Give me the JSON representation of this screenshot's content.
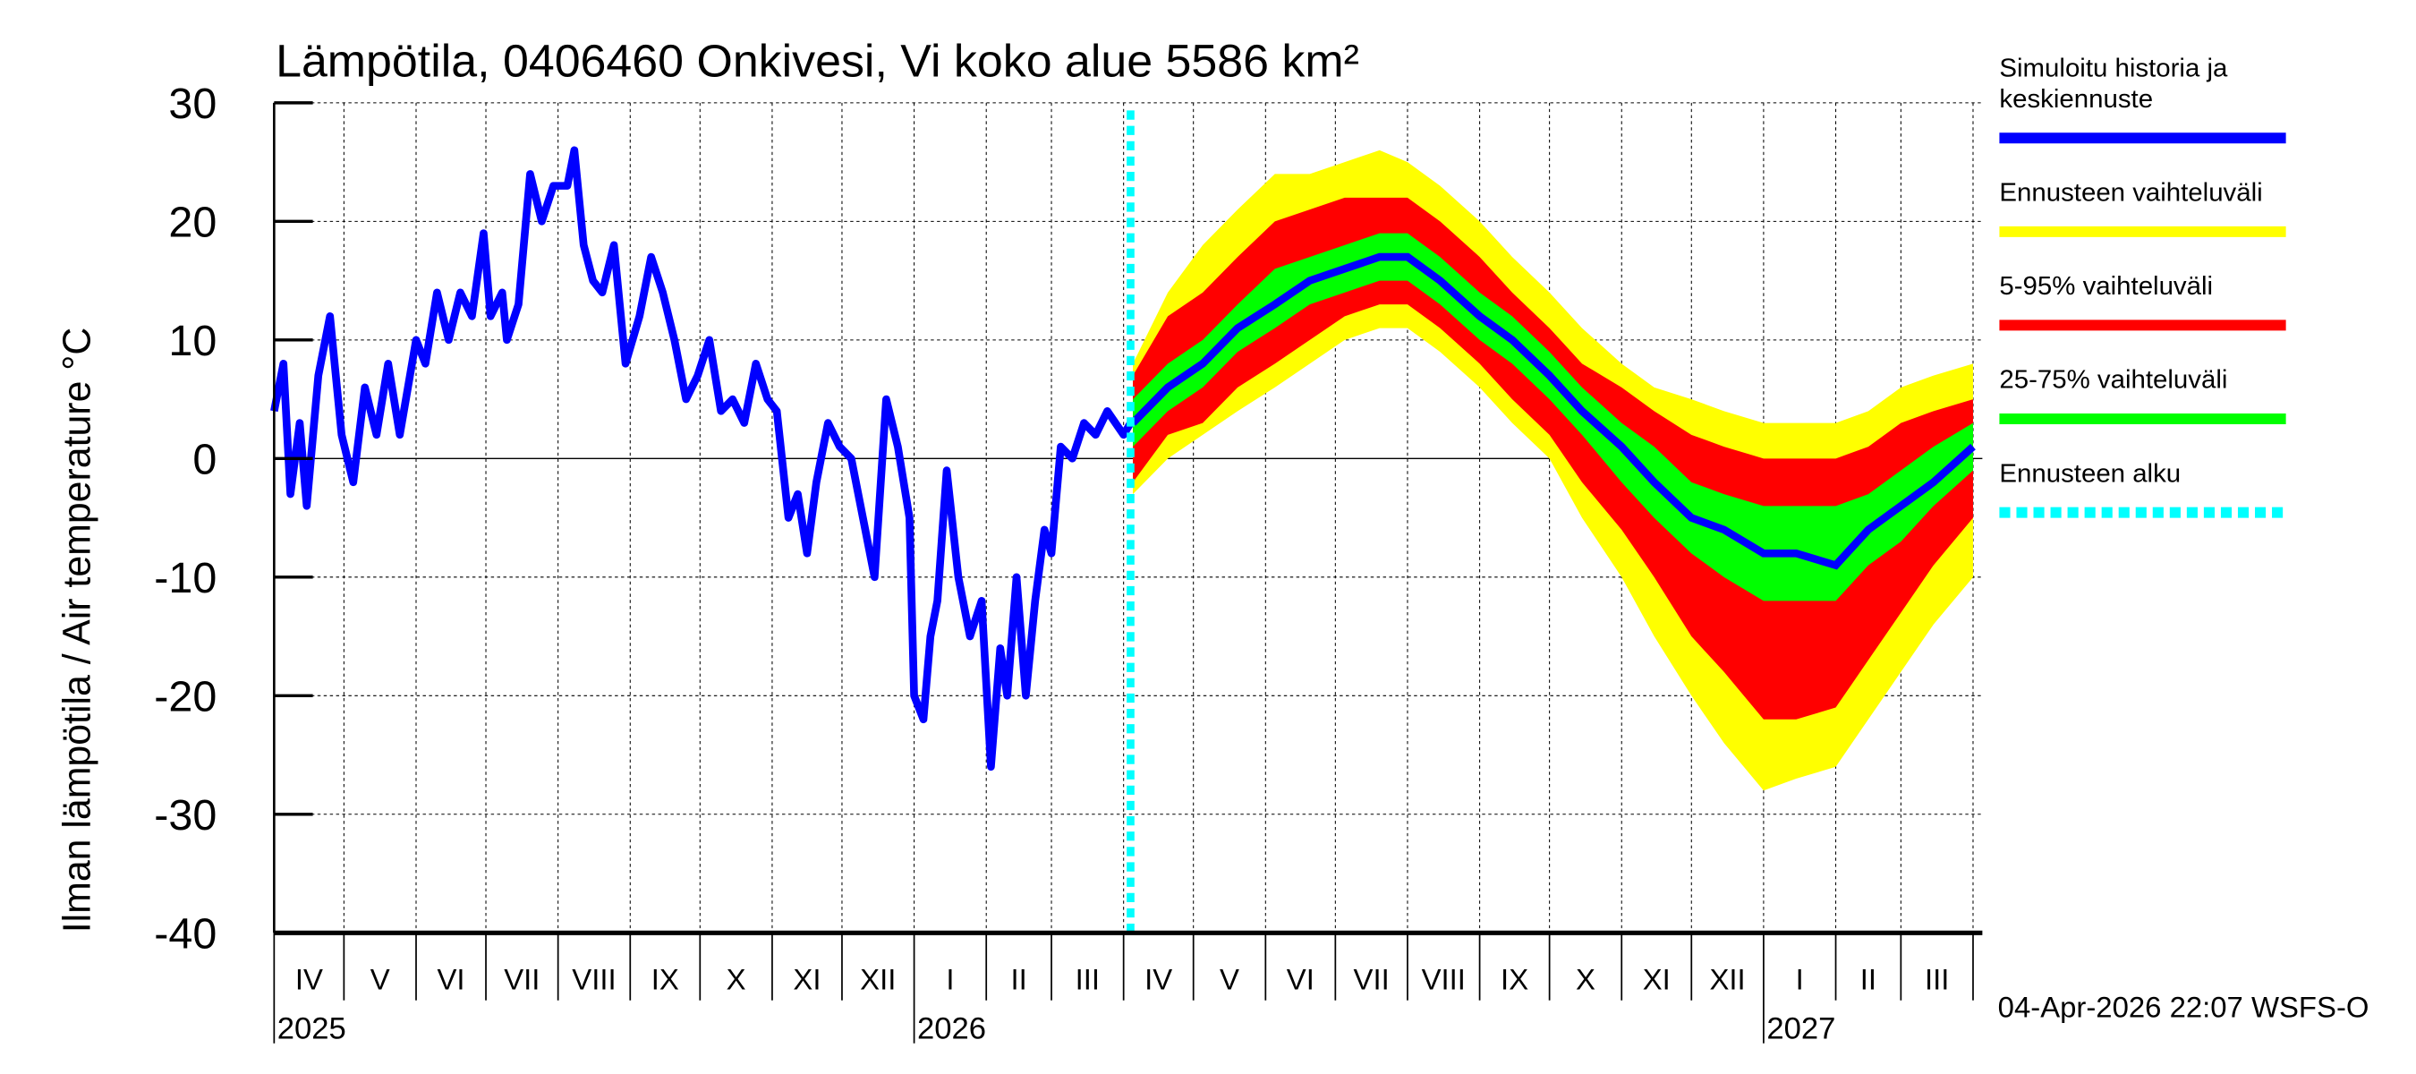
{
  "chart_data": {
    "type": "area",
    "title": "Lämpötila, 0406460 Onkivesi, Vi koko alue 5586 km²",
    "ylabel": "Ilman lämpötila / Air temperature   °C",
    "ylim": [
      -40,
      30
    ],
    "yticks": [
      "30",
      "20",
      "10",
      "0",
      "-10",
      "-20",
      "-30",
      "-40"
    ],
    "grid": true,
    "xrange": [
      "2025-04-01",
      "2027-04-05"
    ],
    "months": [
      "IV",
      "V",
      "VI",
      "VII",
      "VIII",
      "IX",
      "X",
      "XI",
      "XII",
      "I",
      "II",
      "III",
      "IV",
      "V",
      "VI",
      "VII",
      "VIII",
      "IX",
      "X",
      "XI",
      "XII",
      "I",
      "II",
      "III"
    ],
    "years": [
      {
        "label": "2025",
        "date": "2025-04-01"
      },
      {
        "label": "2026",
        "date": "2026-01-01"
      },
      {
        "label": "2027",
        "date": "2027-01-01"
      }
    ],
    "forecast_start": "2026-04-04",
    "footer": "04-Apr-2026 22:07 WSFS-O",
    "legend": {
      "placement": "right",
      "items": [
        {
          "label1": "Simuloitu historia ja",
          "label2": "keskiennuste",
          "color": "#0000ff",
          "style": "solid"
        },
        {
          "label1": "Ennusteen vaihteluväli",
          "color": "#ffff00",
          "style": "solid"
        },
        {
          "label1": "5-95% vaihteluväli",
          "color": "#ff0000",
          "style": "solid"
        },
        {
          "label1": "25-75% vaihteluväli",
          "color": "#00ff00",
          "style": "solid"
        },
        {
          "label1": "Ennusteen alku",
          "color": "#00ffff",
          "style": "dashed"
        }
      ]
    },
    "history": [
      [
        "2025-04-01",
        4
      ],
      [
        "2025-04-05",
        8
      ],
      [
        "2025-04-08",
        -3
      ],
      [
        "2025-04-12",
        3
      ],
      [
        "2025-04-15",
        -4
      ],
      [
        "2025-04-20",
        7
      ],
      [
        "2025-04-25",
        12
      ],
      [
        "2025-04-30",
        2
      ],
      [
        "2025-05-05",
        -2
      ],
      [
        "2025-05-10",
        6
      ],
      [
        "2025-05-15",
        2
      ],
      [
        "2025-05-20",
        8
      ],
      [
        "2025-05-25",
        2
      ],
      [
        "2025-06-01",
        10
      ],
      [
        "2025-06-05",
        8
      ],
      [
        "2025-06-10",
        14
      ],
      [
        "2025-06-15",
        10
      ],
      [
        "2025-06-20",
        14
      ],
      [
        "2025-06-25",
        12
      ],
      [
        "2025-06-30",
        19
      ],
      [
        "2025-07-03",
        12
      ],
      [
        "2025-07-08",
        14
      ],
      [
        "2025-07-10",
        10
      ],
      [
        "2025-07-15",
        13
      ],
      [
        "2025-07-20",
        24
      ],
      [
        "2025-07-25",
        20
      ],
      [
        "2025-07-30",
        23
      ],
      [
        "2025-08-05",
        23
      ],
      [
        "2025-08-08",
        26
      ],
      [
        "2025-08-12",
        18
      ],
      [
        "2025-08-16",
        15
      ],
      [
        "2025-08-20",
        14
      ],
      [
        "2025-08-25",
        18
      ],
      [
        "2025-08-30",
        8
      ],
      [
        "2025-09-05",
        12
      ],
      [
        "2025-09-10",
        17
      ],
      [
        "2025-09-15",
        14
      ],
      [
        "2025-09-20",
        10
      ],
      [
        "2025-09-25",
        5
      ],
      [
        "2025-09-30",
        7
      ],
      [
        "2025-10-05",
        10
      ],
      [
        "2025-10-10",
        4
      ],
      [
        "2025-10-15",
        5
      ],
      [
        "2025-10-20",
        3
      ],
      [
        "2025-10-25",
        8
      ],
      [
        "2025-10-30",
        5
      ],
      [
        "2025-11-03",
        4
      ],
      [
        "2025-11-08",
        -5
      ],
      [
        "2025-11-12",
        -3
      ],
      [
        "2025-11-16",
        -8
      ],
      [
        "2025-11-20",
        -2
      ],
      [
        "2025-11-25",
        3
      ],
      [
        "2025-11-30",
        1
      ],
      [
        "2025-12-05",
        0
      ],
      [
        "2025-12-10",
        -5
      ],
      [
        "2025-12-15",
        -10
      ],
      [
        "2025-12-20",
        5
      ],
      [
        "2025-12-25",
        1
      ],
      [
        "2025-12-30",
        -5
      ],
      [
        "2026-01-01",
        -20
      ],
      [
        "2026-01-05",
        -22
      ],
      [
        "2026-01-08",
        -15
      ],
      [
        "2026-01-11",
        -12
      ],
      [
        "2026-01-15",
        -1
      ],
      [
        "2026-01-20",
        -10
      ],
      [
        "2026-01-25",
        -15
      ],
      [
        "2026-01-30",
        -12
      ],
      [
        "2026-02-03",
        -26
      ],
      [
        "2026-02-07",
        -16
      ],
      [
        "2026-02-10",
        -20
      ],
      [
        "2026-02-14",
        -10
      ],
      [
        "2026-02-18",
        -20
      ],
      [
        "2026-02-22",
        -12
      ],
      [
        "2026-02-26",
        -6
      ],
      [
        "2026-03-01",
        -8
      ],
      [
        "2026-03-05",
        1
      ],
      [
        "2026-03-10",
        0
      ],
      [
        "2026-03-15",
        3
      ],
      [
        "2026-03-20",
        2
      ],
      [
        "2026-03-25",
        4
      ],
      [
        "2026-04-01",
        2
      ],
      [
        "2026-04-04",
        3
      ]
    ],
    "forecast_columns": [
      "date",
      "min",
      "p5",
      "p25",
      "median",
      "p75",
      "p95",
      "max"
    ],
    "forecast": [
      [
        "2026-04-05",
        -3,
        -2,
        1,
        3,
        5,
        7,
        8
      ],
      [
        "2026-04-20",
        0,
        2,
        4,
        6,
        8,
        12,
        14
      ],
      [
        "2026-05-05",
        2,
        3,
        6,
        8,
        10,
        14,
        18
      ],
      [
        "2026-05-20",
        4,
        6,
        9,
        11,
        13,
        17,
        21
      ],
      [
        "2026-06-05",
        6,
        8,
        11,
        13,
        16,
        20,
        24
      ],
      [
        "2026-06-20",
        8,
        10,
        13,
        15,
        17,
        21,
        24
      ],
      [
        "2026-07-05",
        10,
        12,
        14,
        16,
        18,
        22,
        25
      ],
      [
        "2026-07-20",
        11,
        13,
        15,
        17,
        19,
        22,
        26
      ],
      [
        "2026-08-01",
        11,
        13,
        15,
        17,
        19,
        22,
        25
      ],
      [
        "2026-08-15",
        9,
        11,
        13,
        15,
        17,
        20,
        23
      ],
      [
        "2026-09-01",
        6,
        8,
        10,
        12,
        14,
        17,
        20
      ],
      [
        "2026-09-15",
        3,
        5,
        8,
        10,
        12,
        14,
        17
      ],
      [
        "2026-10-01",
        0,
        2,
        5,
        7,
        9,
        11,
        14
      ],
      [
        "2026-10-15",
        -5,
        -2,
        2,
        4,
        6,
        8,
        11
      ],
      [
        "2026-11-01",
        -10,
        -6,
        -2,
        1,
        3,
        6,
        8
      ],
      [
        "2026-11-15",
        -15,
        -10,
        -5,
        -2,
        1,
        4,
        6
      ],
      [
        "2026-12-01",
        -20,
        -15,
        -8,
        -5,
        -2,
        2,
        5
      ],
      [
        "2026-12-15",
        -24,
        -18,
        -10,
        -6,
        -3,
        1,
        4
      ],
      [
        "2027-01-01",
        -28,
        -22,
        -12,
        -8,
        -4,
        0,
        3
      ],
      [
        "2027-01-15",
        -27,
        -22,
        -12,
        -8,
        -4,
        0,
        3
      ],
      [
        "2027-02-01",
        -26,
        -21,
        -12,
        -9,
        -4,
        0,
        3
      ],
      [
        "2027-02-15",
        -22,
        -17,
        -9,
        -6,
        -3,
        1,
        4
      ],
      [
        "2027-03-01",
        -18,
        -13,
        -7,
        -4,
        -1,
        3,
        6
      ],
      [
        "2027-03-15",
        -14,
        -9,
        -4,
        -2,
        1,
        4,
        7
      ],
      [
        "2027-04-01",
        -10,
        -5,
        -1,
        1,
        3,
        5,
        8
      ]
    ]
  }
}
